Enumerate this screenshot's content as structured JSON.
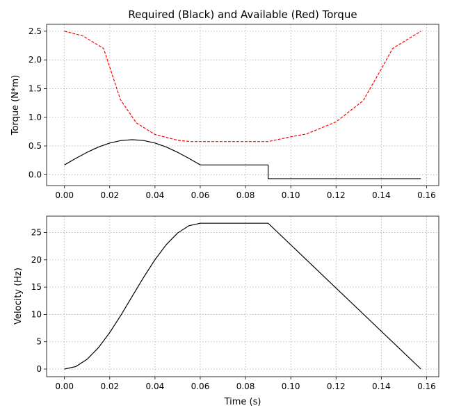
{
  "chart_data": [
    {
      "type": "line",
      "title": "Required (Black) and Available (Red) Torque",
      "xlabel": "",
      "ylabel": "Torque (N*m)",
      "xlim": [
        -0.0079,
        0.1654
      ],
      "ylim": [
        -0.19,
        2.62
      ],
      "xticks": [
        0,
        0.02,
        0.04,
        0.06,
        0.08,
        0.1,
        0.12,
        0.14,
        0.16
      ],
      "xtick_labels": [
        "0.00",
        "0.02",
        "0.04",
        "0.06",
        "0.08",
        "0.10",
        "0.12",
        "0.14",
        "0.16"
      ],
      "yticks": [
        0,
        0.5,
        1.0,
        1.5,
        2.0,
        2.5
      ],
      "ytick_labels": [
        "0.0",
        "0.5",
        "1.0",
        "1.5",
        "2.0",
        "2.5"
      ],
      "grid": true,
      "series": [
        {
          "name": "Available",
          "color": "#ff0000",
          "style": "dashed",
          "x": [
            0,
            0.008,
            0.0173,
            0.0247,
            0.0318,
            0.04,
            0.05,
            0.0557,
            0.09,
            0.1,
            0.107,
            0.12,
            0.132,
            0.14,
            0.145,
            0.1575
          ],
          "y": [
            2.5,
            2.42,
            2.2,
            1.31,
            0.9,
            0.7,
            0.6,
            0.577,
            0.577,
            0.66,
            0.71,
            0.92,
            1.29,
            1.84,
            2.2,
            2.5
          ]
        },
        {
          "name": "Required",
          "color": "#000000",
          "style": "solid",
          "x": [
            0,
            0.005,
            0.01,
            0.015,
            0.02,
            0.025,
            0.03,
            0.035,
            0.04,
            0.045,
            0.05,
            0.055,
            0.06,
            0.09,
            0.09,
            0.1575
          ],
          "y": [
            0.17,
            0.284,
            0.39,
            0.481,
            0.551,
            0.595,
            0.61,
            0.595,
            0.551,
            0.481,
            0.39,
            0.284,
            0.17,
            0.17,
            -0.07,
            -0.07
          ]
        }
      ]
    },
    {
      "type": "line",
      "title": "",
      "xlabel": "Time (s)",
      "ylabel": "Velocity (Hz)",
      "xlim": [
        -0.0079,
        0.1654
      ],
      "ylim": [
        -1.4,
        28.0
      ],
      "xticks": [
        0,
        0.02,
        0.04,
        0.06,
        0.08,
        0.1,
        0.12,
        0.14,
        0.16
      ],
      "xtick_labels": [
        "0.00",
        "0.02",
        "0.04",
        "0.06",
        "0.08",
        "0.10",
        "0.12",
        "0.14",
        "0.16"
      ],
      "yticks": [
        0,
        5,
        10,
        15,
        20,
        25
      ],
      "ytick_labels": [
        "0",
        "5",
        "10",
        "15",
        "20",
        "25"
      ],
      "grid": true,
      "series": [
        {
          "name": "Velocity",
          "color": "#000000",
          "style": "solid",
          "x": [
            0,
            0.005,
            0.01,
            0.015,
            0.02,
            0.025,
            0.03,
            0.035,
            0.04,
            0.045,
            0.05,
            0.055,
            0.06,
            0.09,
            0.1575
          ],
          "y": [
            0,
            0.455,
            1.79,
            3.91,
            6.68,
            9.9,
            13.35,
            16.8,
            20.03,
            22.79,
            24.91,
            26.25,
            26.7,
            26.7,
            0
          ]
        }
      ]
    }
  ]
}
